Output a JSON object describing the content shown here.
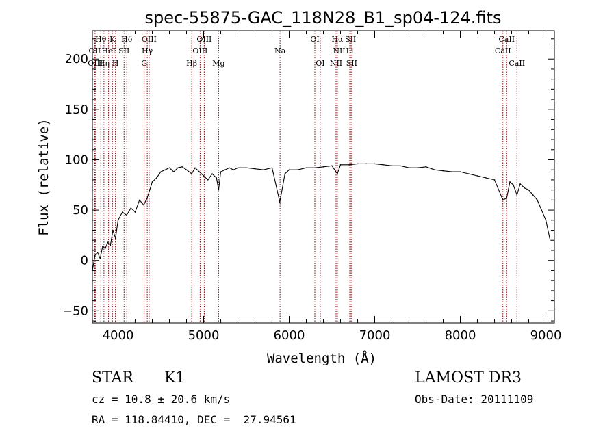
{
  "chart_data": {
    "type": "line",
    "title": "spec-55875-GAC_118N28_B1_sp04-124.fits",
    "xlabel": "Wavelength (Å)",
    "ylabel": "Flux (relative)",
    "xlim": [
      3700,
      9100
    ],
    "ylim": [
      -62,
      228
    ],
    "xticks": [
      4000,
      5000,
      6000,
      7000,
      8000,
      9000
    ],
    "xtick_labels": [
      "4000",
      "5000",
      "6000",
      "7000",
      "8000",
      "9000"
    ],
    "yticks": [
      -50,
      0,
      50,
      100,
      150,
      200
    ],
    "ytick_labels": [
      "−50",
      "0",
      "50",
      "100",
      "150",
      "200"
    ],
    "grid": false,
    "line_color": "#000000",
    "marker_color": "#8b0000",
    "series": [
      {
        "x": [
          3700,
          3730,
          3760,
          3790,
          3820,
          3850,
          3880,
          3910,
          3940,
          3970,
          4000,
          4050,
          4100,
          4150,
          4200,
          4250,
          4300,
          4340,
          4400,
          4450,
          4500,
          4550,
          4600,
          4650,
          4700,
          4750,
          4800,
          4861,
          4900,
          4950,
          5000,
          5050,
          5100,
          5150,
          5175,
          5200,
          5250,
          5300,
          5350,
          5400,
          5500,
          5600,
          5700,
          5800,
          5890,
          5950,
          6000,
          6100,
          6200,
          6300,
          6400,
          6500,
          6563,
          6600,
          6700,
          6800,
          6900,
          7000,
          7100,
          7200,
          7300,
          7400,
          7500,
          7600,
          7700,
          7800,
          7900,
          8000,
          8100,
          8200,
          8300,
          8400,
          8498,
          8542,
          8580,
          8620,
          8662,
          8700,
          8750,
          8800,
          8850,
          8900,
          8950,
          9000,
          9050
        ],
        "y": [
          -10,
          5,
          8,
          2,
          14,
          12,
          18,
          15,
          30,
          22,
          40,
          48,
          45,
          52,
          48,
          60,
          55,
          62,
          78,
          82,
          88,
          90,
          92,
          88,
          92,
          93,
          90,
          86,
          92,
          88,
          84,
          80,
          86,
          82,
          70,
          88,
          90,
          92,
          90,
          92,
          92,
          91,
          90,
          92,
          58,
          86,
          90,
          90,
          92,
          92,
          93,
          94,
          86,
          95,
          95,
          96,
          96,
          96,
          95,
          94,
          94,
          92,
          92,
          93,
          90,
          89,
          88,
          88,
          86,
          84,
          82,
          80,
          60,
          62,
          78,
          75,
          65,
          76,
          72,
          70,
          65,
          60,
          50,
          40,
          20
        ]
      }
    ],
    "line_markers": [
      {
        "label": "Hθ",
        "wavelength": 3798,
        "row": 0
      },
      {
        "label": "OII",
        "wavelength": 3727,
        "row": 1
      },
      {
        "label": "OIII",
        "wavelength": 3734,
        "row": 2
      },
      {
        "label": "K",
        "wavelength": 3934,
        "row": 0
      },
      {
        "label": "HeI",
        "wavelength": 3889,
        "row": 1
      },
      {
        "label": "Hη",
        "wavelength": 3835,
        "row": 2
      },
      {
        "label": "Hδ",
        "wavelength": 4102,
        "row": 0
      },
      {
        "label": "SII",
        "wavelength": 4070,
        "row": 1
      },
      {
        "label": "H",
        "wavelength": 3969,
        "row": 2
      },
      {
        "label": "OIII",
        "wavelength": 4363,
        "row": 0
      },
      {
        "label": "Hγ",
        "wavelength": 4341,
        "row": 1
      },
      {
        "label": "G",
        "wavelength": 4305,
        "row": 2
      },
      {
        "label": "OIII",
        "wavelength": 5007,
        "row": 0
      },
      {
        "label": "OIII",
        "wavelength": 4959,
        "row": 1
      },
      {
        "label": "Hβ",
        "wavelength": 4861,
        "row": 2
      },
      {
        "label": "Mg",
        "wavelength": 5175,
        "row": 2
      },
      {
        "label": "Na",
        "wavelength": 5893,
        "row": 1
      },
      {
        "label": "OI",
        "wavelength": 6300,
        "row": 0
      },
      {
        "label": "OI",
        "wavelength": 6363,
        "row": 2
      },
      {
        "label": "Hα",
        "wavelength": 6563,
        "row": 0
      },
      {
        "label": "SII",
        "wavelength": 6717,
        "row": 0
      },
      {
        "label": "NII",
        "wavelength": 6584,
        "row": 1
      },
      {
        "label": "Li",
        "wavelength": 6708,
        "row": 1
      },
      {
        "label": "NII",
        "wavelength": 6548,
        "row": 2
      },
      {
        "label": "SII",
        "wavelength": 6731,
        "row": 2
      },
      {
        "label": "CaII",
        "wavelength": 8542,
        "row": 0
      },
      {
        "label": "CaII",
        "wavelength": 8498,
        "row": 1
      },
      {
        "label": "CaII",
        "wavelength": 8662,
        "row": 2
      }
    ]
  },
  "info": {
    "class_label": "STAR",
    "subclass_label": "K1",
    "survey": "LAMOST DR3",
    "cz": "cz = 10.8 ± 20.6 km/s",
    "obs_date": "Obs-Date: 20111109",
    "coords": "RA = 118.84410, DEC =  27.94561"
  }
}
